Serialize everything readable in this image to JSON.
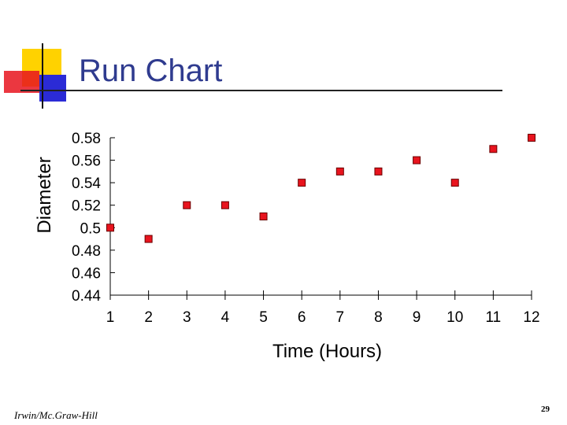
{
  "slide": {
    "title": "Run Chart",
    "footer_left": "Irwin/Mc.Graw-Hill",
    "page_number": "29"
  },
  "colors": {
    "title": "#2f3b8f",
    "marker_fill": "#e8141e",
    "marker_stroke": "#6a0000",
    "logo_yellow": "#ffd200",
    "logo_red": "#e8141e",
    "logo_blue": "#2b2bd6"
  },
  "chart_data": {
    "type": "scatter",
    "xlabel": "Time (Hours)",
    "ylabel": "Diameter",
    "x": [
      1,
      2,
      3,
      4,
      5,
      6,
      7,
      8,
      9,
      10,
      11,
      12
    ],
    "y": [
      0.5,
      0.49,
      0.52,
      0.52,
      0.51,
      0.54,
      0.55,
      0.55,
      0.56,
      0.54,
      0.57,
      0.58
    ],
    "x_ticks": [
      "1",
      "2",
      "3",
      "4",
      "5",
      "6",
      "7",
      "8",
      "9",
      "10",
      "11",
      "12"
    ],
    "y_ticks": [
      "0.44",
      "0.46",
      "0.48",
      "0.5",
      "0.52",
      "0.54",
      "0.56",
      "0.58"
    ],
    "ylim": [
      0.44,
      0.58
    ],
    "xlim": [
      1,
      12
    ],
    "grid": false,
    "legend": "none"
  }
}
